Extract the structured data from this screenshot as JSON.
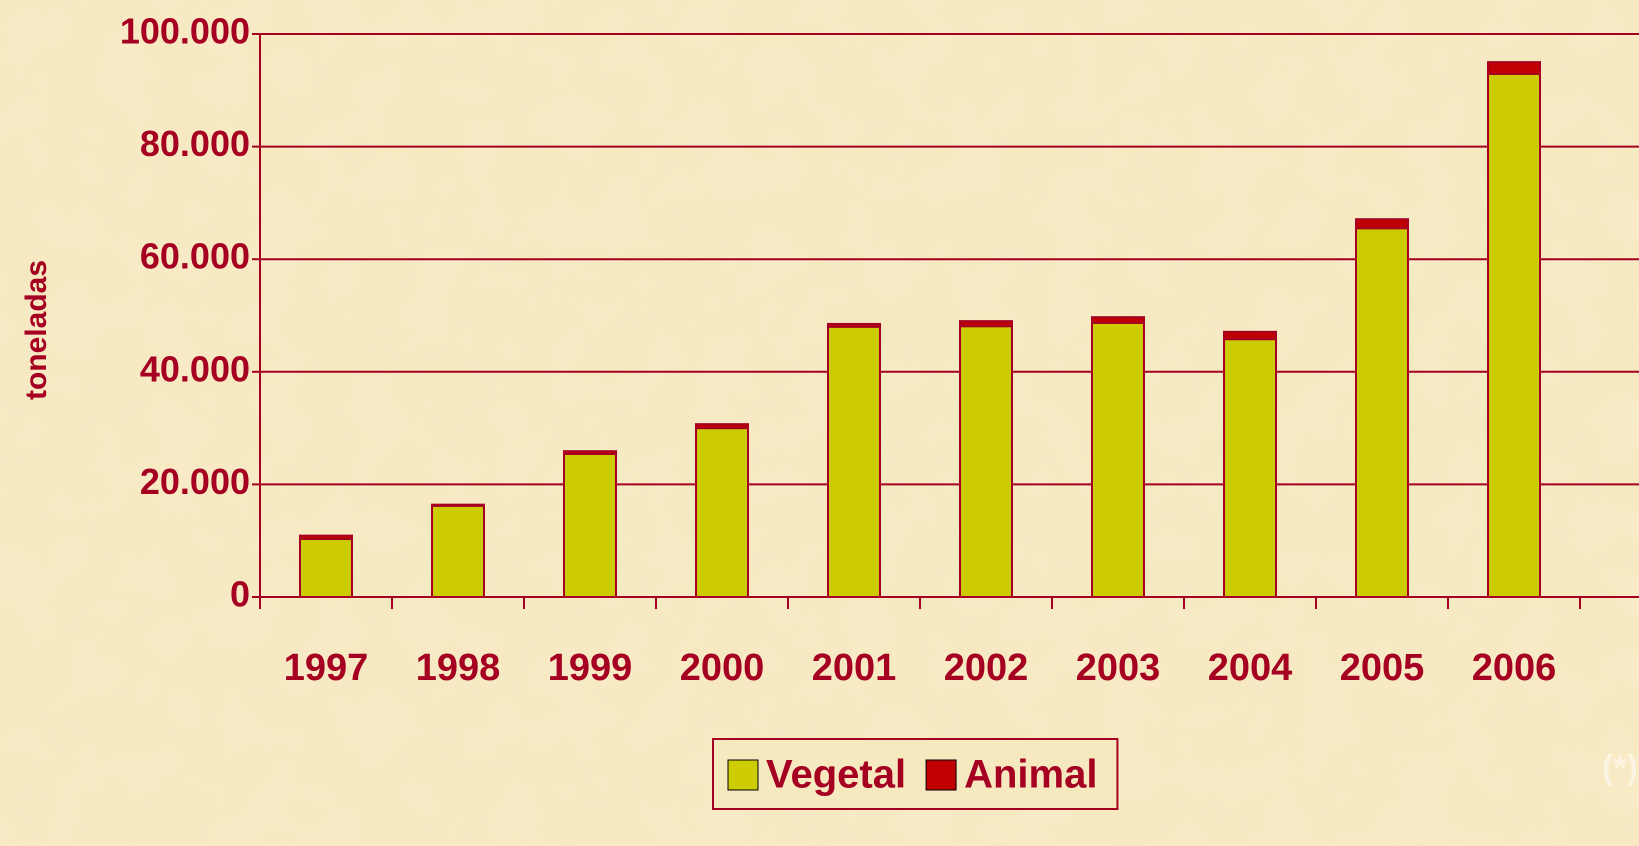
{
  "chart_data": {
    "type": "stacked_bar",
    "y_label": "toneladas",
    "annotation": "(*)",
    "categories": [
      "1997",
      "1998",
      "1999",
      "2000",
      "2001",
      "2002",
      "2003",
      "2004",
      "2005",
      "2006"
    ],
    "series": [
      {
        "name": "Vegetal",
        "color": "#cccc00",
        "values": [
          10300,
          16200,
          25400,
          30000,
          48000,
          48100,
          48700,
          45800,
          65500,
          92900
        ]
      },
      {
        "name": "Animal",
        "color": "#c00000",
        "values": [
          600,
          200,
          500,
          700,
          500,
          900,
          1000,
          1300,
          1600,
          2100
        ]
      }
    ],
    "ylim": [
      0,
      100000
    ],
    "yticks": [
      0,
      {
        "value": 20000,
        "label": "20.000"
      },
      {
        "value": 40000,
        "label": "40.000"
      },
      {
        "value": 60000,
        "label": "60.000"
      },
      {
        "value": 80000,
        "label": "80.000"
      },
      {
        "value": 100000,
        "label": "100.000"
      }
    ],
    "grid": true,
    "legend": "bottom"
  }
}
